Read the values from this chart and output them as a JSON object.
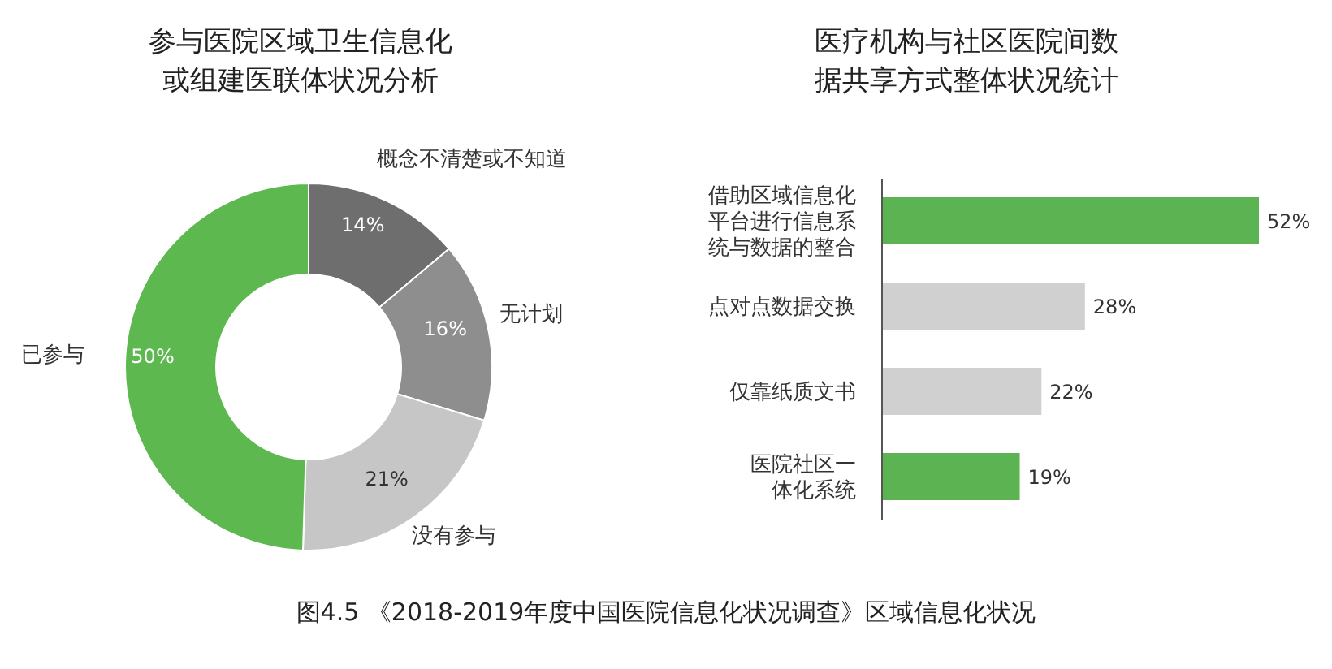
{
  "chart_data": [
    {
      "type": "donut",
      "title": "参与医院区域卫生信息化或组建医联体状况分析",
      "categories": [
        "概念不清楚或不知道",
        "无计划",
        "没有参与",
        "已参与"
      ],
      "values": [
        14,
        16,
        21,
        50
      ],
      "value_labels": [
        "14%",
        "16%",
        "21%",
        "50%"
      ],
      "colors": [
        "#6e6e6e",
        "#8e8e8e",
        "#c6c6c6",
        "#5cb84f"
      ],
      "annotations": [
        "图4.5 《2018-2019年度中国医院信息化状况调查》区域信息化状况"
      ]
    },
    {
      "type": "bar",
      "orientation": "horizontal",
      "title": "医疗机构与社区医院间数据共享方式整体状况统计",
      "categories": [
        "借助区域信息化平台进行信息系统与数据的整合",
        "点对点数据交换",
        "仅靠纸质文书",
        "医院社区一体化系统"
      ],
      "values": [
        52,
        28,
        22,
        19
      ],
      "value_labels": [
        "52%",
        "28%",
        "22%",
        "19%"
      ],
      "colors": [
        "#5cb352",
        "#d0d0d0",
        "#d0d0d0",
        "#5cb352"
      ]
    }
  ]
}
